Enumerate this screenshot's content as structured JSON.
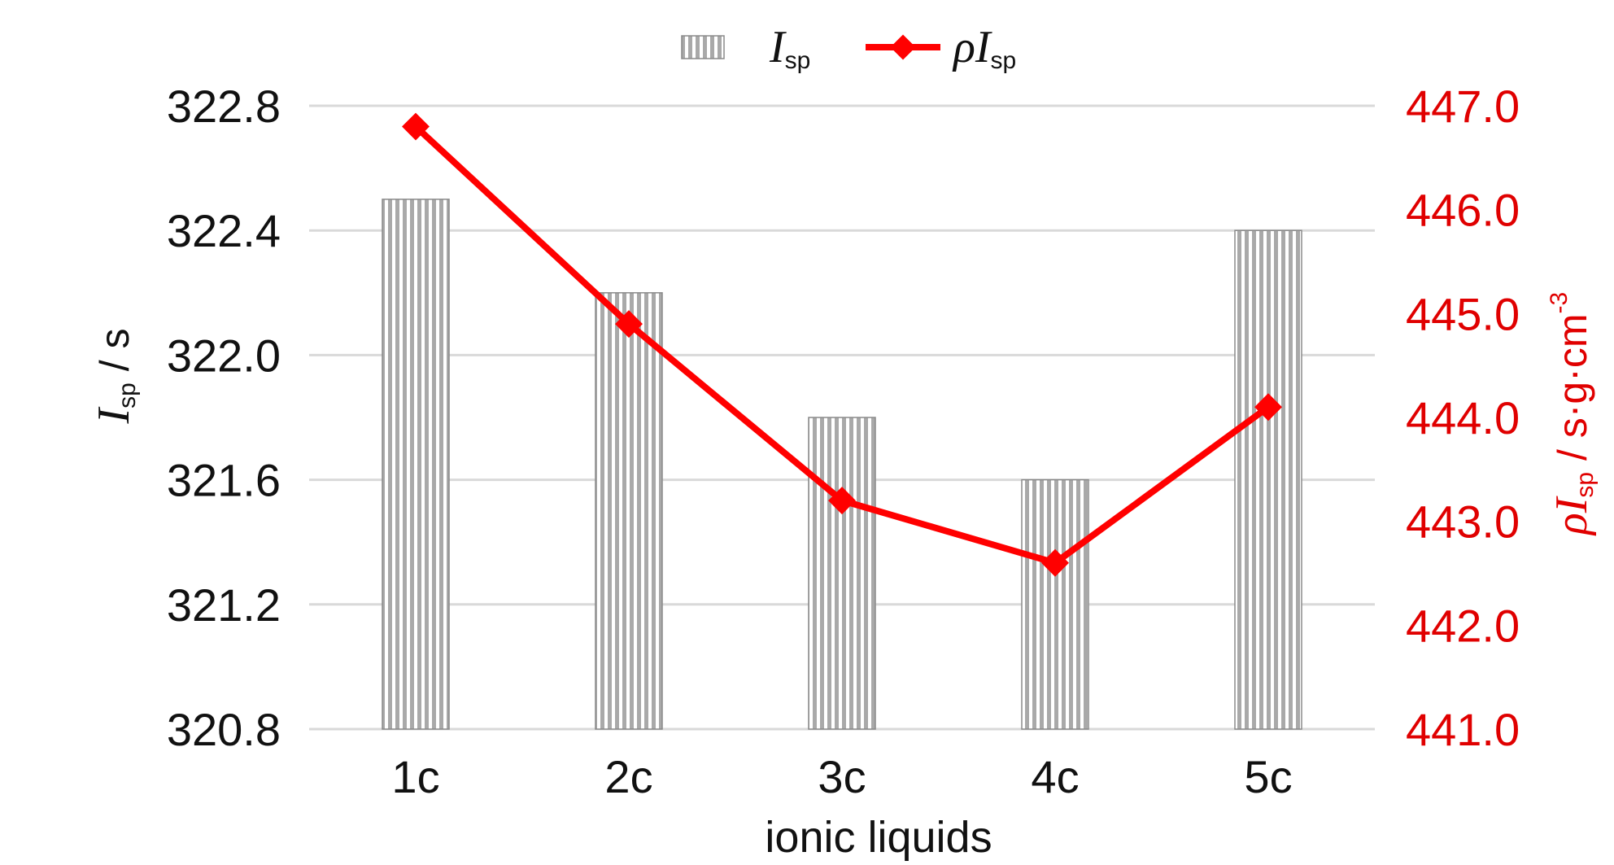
{
  "chart_data": {
    "type": "bar",
    "categories": [
      "1c",
      "2c",
      "3c",
      "4c",
      "5c"
    ],
    "xlabel": "ionic liquids",
    "series": [
      {
        "name": "Isp",
        "name_main": "I",
        "name_sub": "sp",
        "type": "bar",
        "axis": "left",
        "values": [
          322.5,
          322.2,
          321.8,
          321.6,
          322.4
        ],
        "color": "#a9a9a9"
      },
      {
        "name": "ρIsp",
        "name_main": "ρI",
        "name_sub": "sp",
        "type": "line",
        "axis": "right",
        "values": [
          446.8,
          444.9,
          443.2,
          442.6,
          444.1
        ],
        "color": "#ff0000"
      }
    ],
    "y_left": {
      "label_main": "I",
      "label_sub": "sp",
      "label_unit": " / s",
      "lim": [
        320.8,
        322.8
      ],
      "ticks": [
        "320.8",
        "321.2",
        "321.6",
        "322.0",
        "322.4",
        "322.8"
      ]
    },
    "y_right": {
      "label_main": "ρI",
      "label_sub": "sp",
      "label_unit": " / s·g·cm",
      "label_sup": "-3",
      "lim": [
        441.0,
        447.0
      ],
      "ticks": [
        "441.0",
        "442.0",
        "443.0",
        "444.0",
        "445.0",
        "446.0",
        "447.0"
      ],
      "color": "#e00000"
    },
    "grid": true,
    "legend_position": "top-center"
  }
}
